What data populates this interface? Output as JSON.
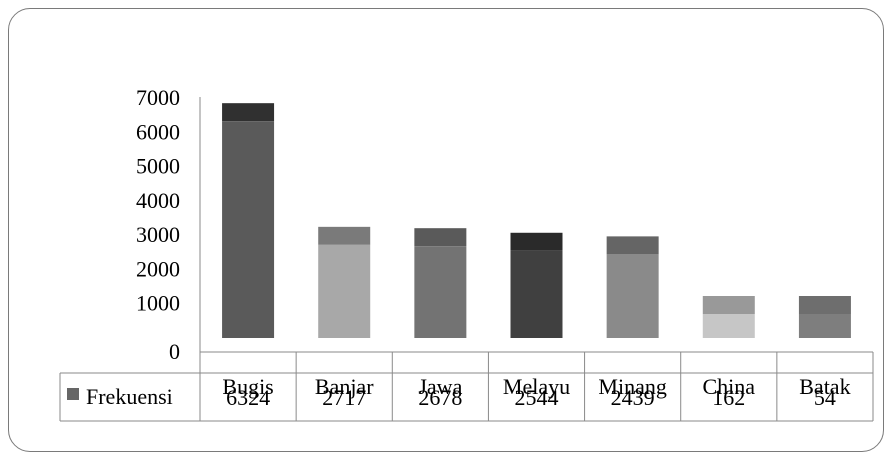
{
  "chart_data": {
    "type": "bar",
    "title": "",
    "xlabel": "",
    "ylabel": "",
    "ylim": [
      0,
      7000
    ],
    "yticks": [
      0,
      1000,
      2000,
      3000,
      4000,
      5000,
      6000,
      7000
    ],
    "grid": false,
    "legend": "data-table-left",
    "categories": [
      "Bugis",
      "Banjar",
      "Jawa",
      "Melayu",
      "Minang",
      "China",
      "Batak"
    ],
    "series": [
      {
        "name": "Frekuensi",
        "values": [
          6324,
          2717,
          2678,
          2544,
          2439,
          162,
          54
        ]
      }
    ],
    "bar_colors": [
      "#5a5a5a",
      "#a8a8a8",
      "#737373",
      "#404040",
      "#8a8a8a",
      "#c6c6c6",
      "#7e7e7e"
    ],
    "bar_top_colors": [
      "#303030",
      "#7a7a7a",
      "#5a5a5a",
      "#2a2a2a",
      "#656565",
      "#999999",
      "#6e6e6e"
    ],
    "legend_color": "#666666"
  }
}
